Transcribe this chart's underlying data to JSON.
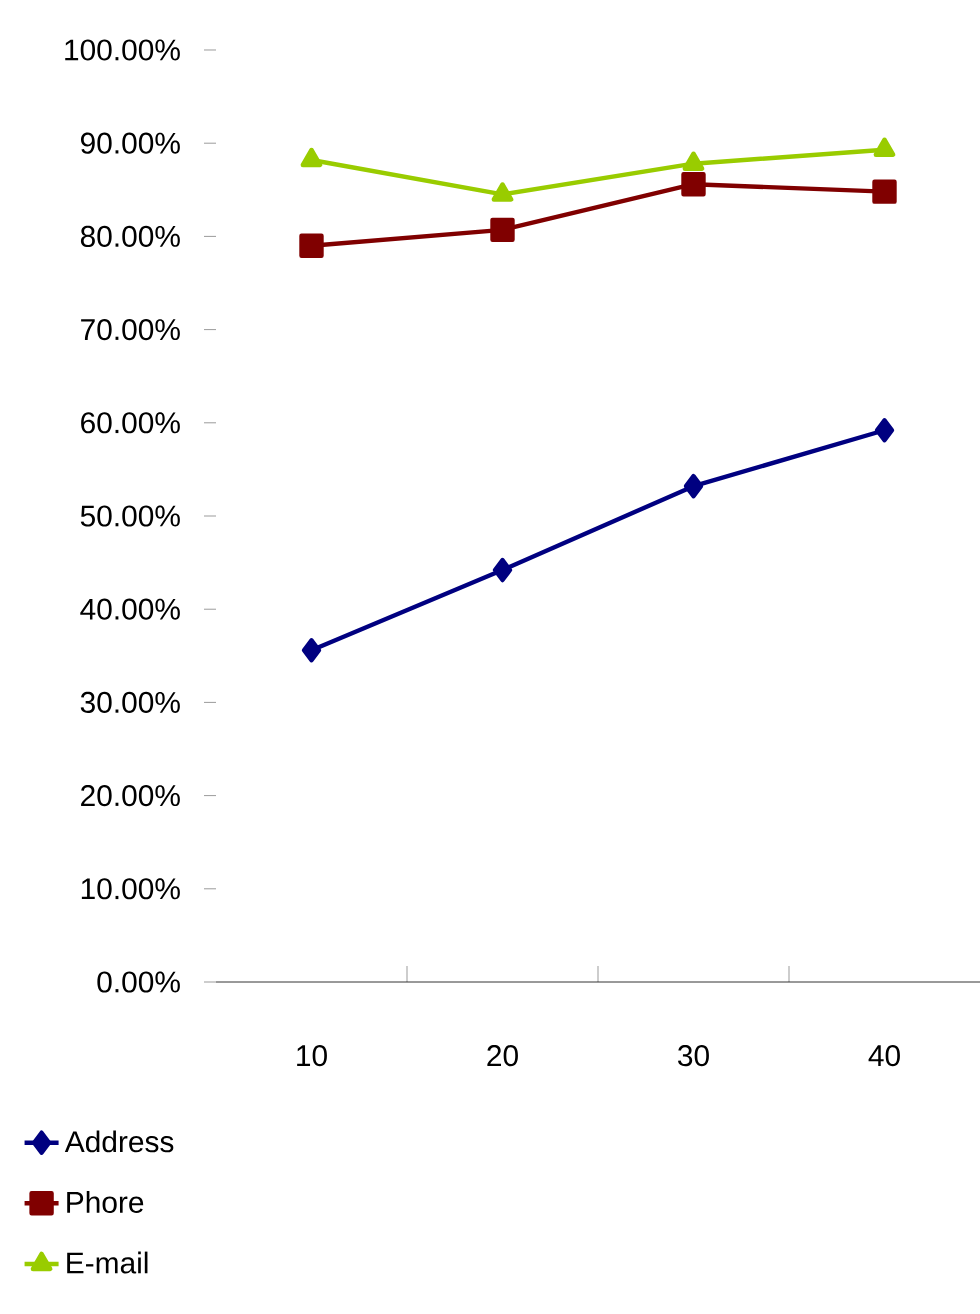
{
  "chart_data": {
    "type": "line",
    "categories": [
      "10",
      "20",
      "30",
      "40"
    ],
    "series": [
      {
        "name": "Address",
        "color": "#000080",
        "marker": "diamond",
        "values": [
          35.6,
          44.2,
          53.2,
          59.2
        ]
      },
      {
        "name": "Phore",
        "color": "#800000",
        "marker": "square",
        "values": [
          79.0,
          80.7,
          85.6,
          84.8
        ]
      },
      {
        "name": "E-mail",
        "color": "#99cc00",
        "marker": "triangle",
        "values": [
          88.2,
          84.5,
          87.8,
          89.3
        ]
      }
    ],
    "ylim": [
      0,
      100
    ],
    "yticks": [
      {
        "value": 0,
        "label": "0.00%"
      },
      {
        "value": 10,
        "label": "10.00%"
      },
      {
        "value": 20,
        "label": "20.00%"
      },
      {
        "value": 30,
        "label": "30.00%"
      },
      {
        "value": 40,
        "label": "40.00%"
      },
      {
        "value": 50,
        "label": "50.00%"
      },
      {
        "value": 60,
        "label": "60.00%"
      },
      {
        "value": 70,
        "label": "70.00%"
      },
      {
        "value": 80,
        "label": "80.00%"
      },
      {
        "value": 90,
        "label": "90.00%"
      },
      {
        "value": 100,
        "label": "100.00%"
      }
    ],
    "grid": false,
    "legend": "bottom left",
    "line_style": "solid"
  }
}
